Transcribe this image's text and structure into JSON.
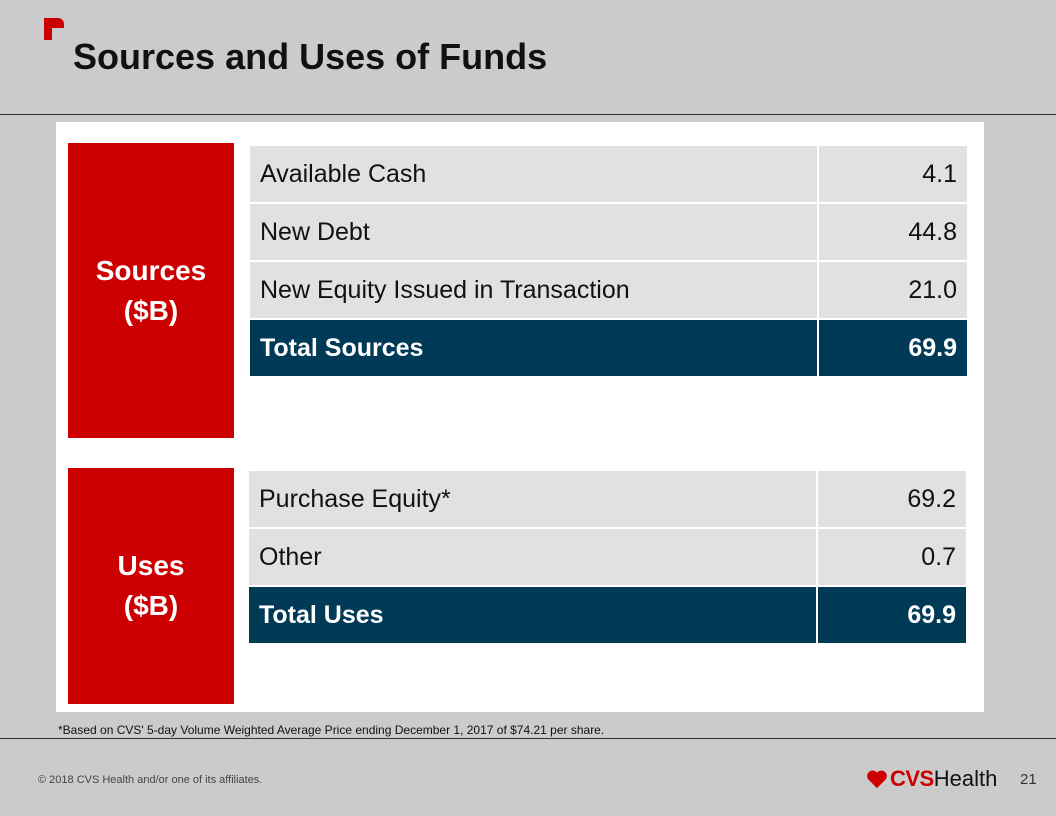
{
  "header": {
    "title": "Sources and Uses of Funds",
    "logo_icon": "cvs-flag-icon",
    "accent_color": "#cc0000"
  },
  "sources": {
    "label_line1": "Sources",
    "label_line2": "($B)",
    "rows": [
      {
        "label": "Available Cash",
        "value": "4.1"
      },
      {
        "label": "New Debt",
        "value": "44.8"
      },
      {
        "label": "New Equity Issued in Transaction",
        "value": "21.0"
      }
    ],
    "total": {
      "label": "Total Sources",
      "value": "69.9"
    }
  },
  "uses": {
    "label_line1": "Uses",
    "label_line2": "($B)",
    "rows": [
      {
        "label": "Purchase Equity*",
        "value": "69.2"
      },
      {
        "label": "Other",
        "value": "0.7"
      }
    ],
    "total": {
      "label": "Total Uses",
      "value": "69.9"
    }
  },
  "footnote": "*Based on CVS' 5-day Volume Weighted Average Price ending December 1, 2017 of $74.21 per share.",
  "footer": {
    "copyright": "© 2018 CVS Health and/or one of its affiliates.",
    "brand_cvs": "CVS",
    "brand_health": "Health",
    "brand_icon": "heart-icon",
    "page_number": "21"
  },
  "colors": {
    "label_red": "#cc0000",
    "total_navy": "#003a56",
    "row_gray": "#e1e1e1"
  }
}
